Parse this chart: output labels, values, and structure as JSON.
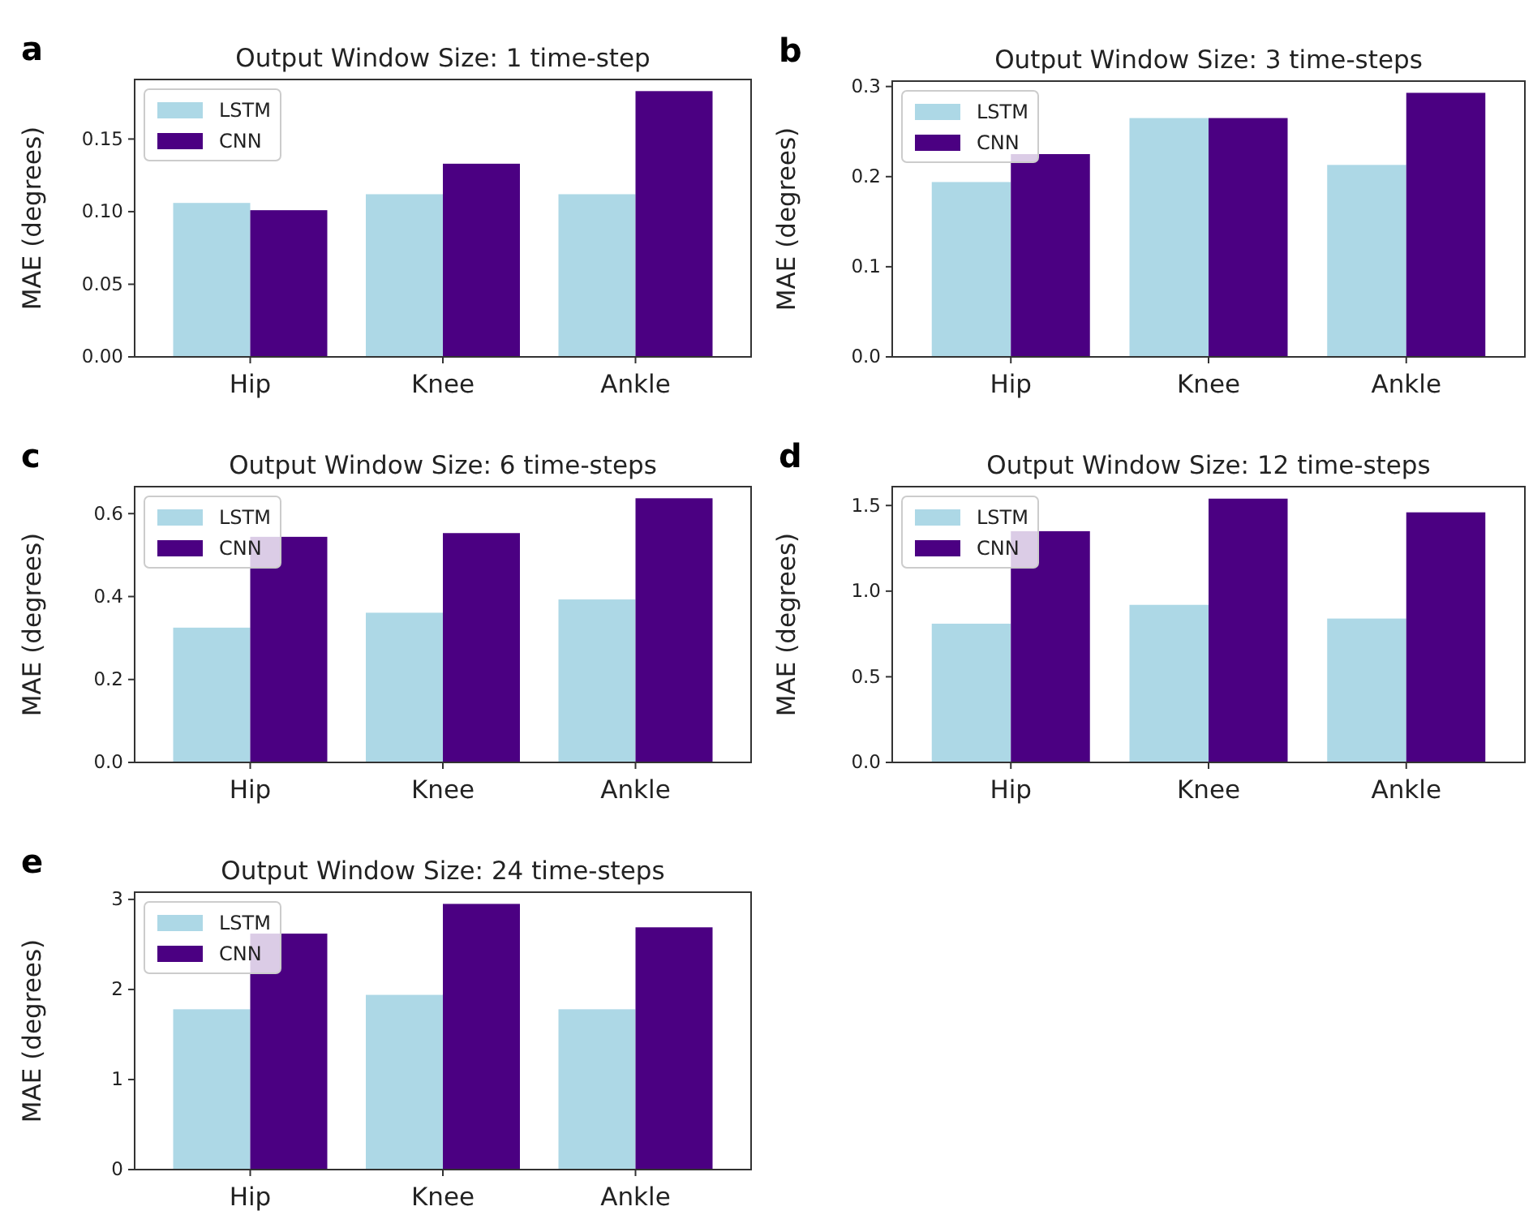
{
  "chart_data": [
    {
      "type": "bar",
      "title": "Output Window Size: 1 time-step",
      "ylabel": "MAE (degrees)",
      "annotations": [
        "a"
      ],
      "categories": [
        "Hip",
        "Knee",
        "Ankle"
      ],
      "series": [
        {
          "name": "LSTM",
          "color": "#add8e6",
          "values": [
            0.106,
            0.112,
            0.112
          ]
        },
        {
          "name": "CNN",
          "color": "#4b0082",
          "values": [
            0.101,
            0.133,
            0.183
          ]
        }
      ],
      "ylim": [
        0,
        0.191
      ],
      "yticks": [
        {
          "value": 0,
          "label": "0.00"
        },
        {
          "value": 0.05,
          "label": "0.05"
        },
        {
          "value": 0.1,
          "label": "0.10"
        },
        {
          "value": 0.15,
          "label": "0.15"
        }
      ],
      "legend": "top left",
      "grid": false
    },
    {
      "type": "bar",
      "title": "Output Window Size: 3 time-steps",
      "ylabel": "MAE (degrees)",
      "annotations": [
        "b"
      ],
      "categories": [
        "Hip",
        "Knee",
        "Ankle"
      ],
      "series": [
        {
          "name": "LSTM",
          "color": "#add8e6",
          "values": [
            0.194,
            0.265,
            0.213
          ]
        },
        {
          "name": "CNN",
          "color": "#4b0082",
          "values": [
            0.225,
            0.265,
            0.293
          ]
        }
      ],
      "ylim": [
        0,
        0.306
      ],
      "yticks": [
        {
          "value": 0,
          "label": "0.0"
        },
        0.1,
        0.2,
        0.3
      ],
      "legend": "top left",
      "grid": false
    },
    {
      "type": "bar",
      "title": "Output Window Size: 6 time-steps",
      "ylabel": "MAE (degrees)",
      "annotations": [
        "c"
      ],
      "categories": [
        "Hip",
        "Knee",
        "Ankle"
      ],
      "series": [
        {
          "name": "LSTM",
          "color": "#add8e6",
          "values": [
            0.325,
            0.361,
            0.393
          ]
        },
        {
          "name": "CNN",
          "color": "#4b0082",
          "values": [
            0.544,
            0.553,
            0.637
          ]
        }
      ],
      "ylim": [
        0,
        0.665
      ],
      "yticks": [
        {
          "value": 0,
          "label": "0.0"
        },
        0.2,
        0.4,
        0.6
      ],
      "legend": "top left",
      "grid": false
    },
    {
      "type": "bar",
      "title": "Output Window Size: 12 time-steps",
      "ylabel": "MAE (degrees)",
      "annotations": [
        "d"
      ],
      "categories": [
        "Hip",
        "Knee",
        "Ankle"
      ],
      "series": [
        {
          "name": "LSTM",
          "color": "#add8e6",
          "values": [
            0.81,
            0.92,
            0.84
          ]
        },
        {
          "name": "CNN",
          "color": "#4b0082",
          "values": [
            1.35,
            1.54,
            1.46
          ]
        }
      ],
      "ylim": [
        0,
        1.61
      ],
      "yticks": [
        {
          "value": 0,
          "label": "0.0"
        },
        0.5,
        {
          "value": 1,
          "label": "1.0"
        },
        1.5
      ],
      "legend": "top left",
      "grid": false
    },
    {
      "type": "bar",
      "title": "Output Window Size: 24 time-steps",
      "ylabel": "MAE (degrees)",
      "annotations": [
        "e"
      ],
      "categories": [
        "Hip",
        "Knee",
        "Ankle"
      ],
      "series": [
        {
          "name": "LSTM",
          "color": "#add8e6",
          "values": [
            1.78,
            1.94,
            1.78
          ]
        },
        {
          "name": "CNN",
          "color": "#4b0082",
          "values": [
            2.62,
            2.95,
            2.69
          ]
        }
      ],
      "ylim": [
        0,
        3.08
      ],
      "yticks": [
        0,
        1,
        2,
        3
      ],
      "legend": "top left",
      "grid": false
    }
  ]
}
